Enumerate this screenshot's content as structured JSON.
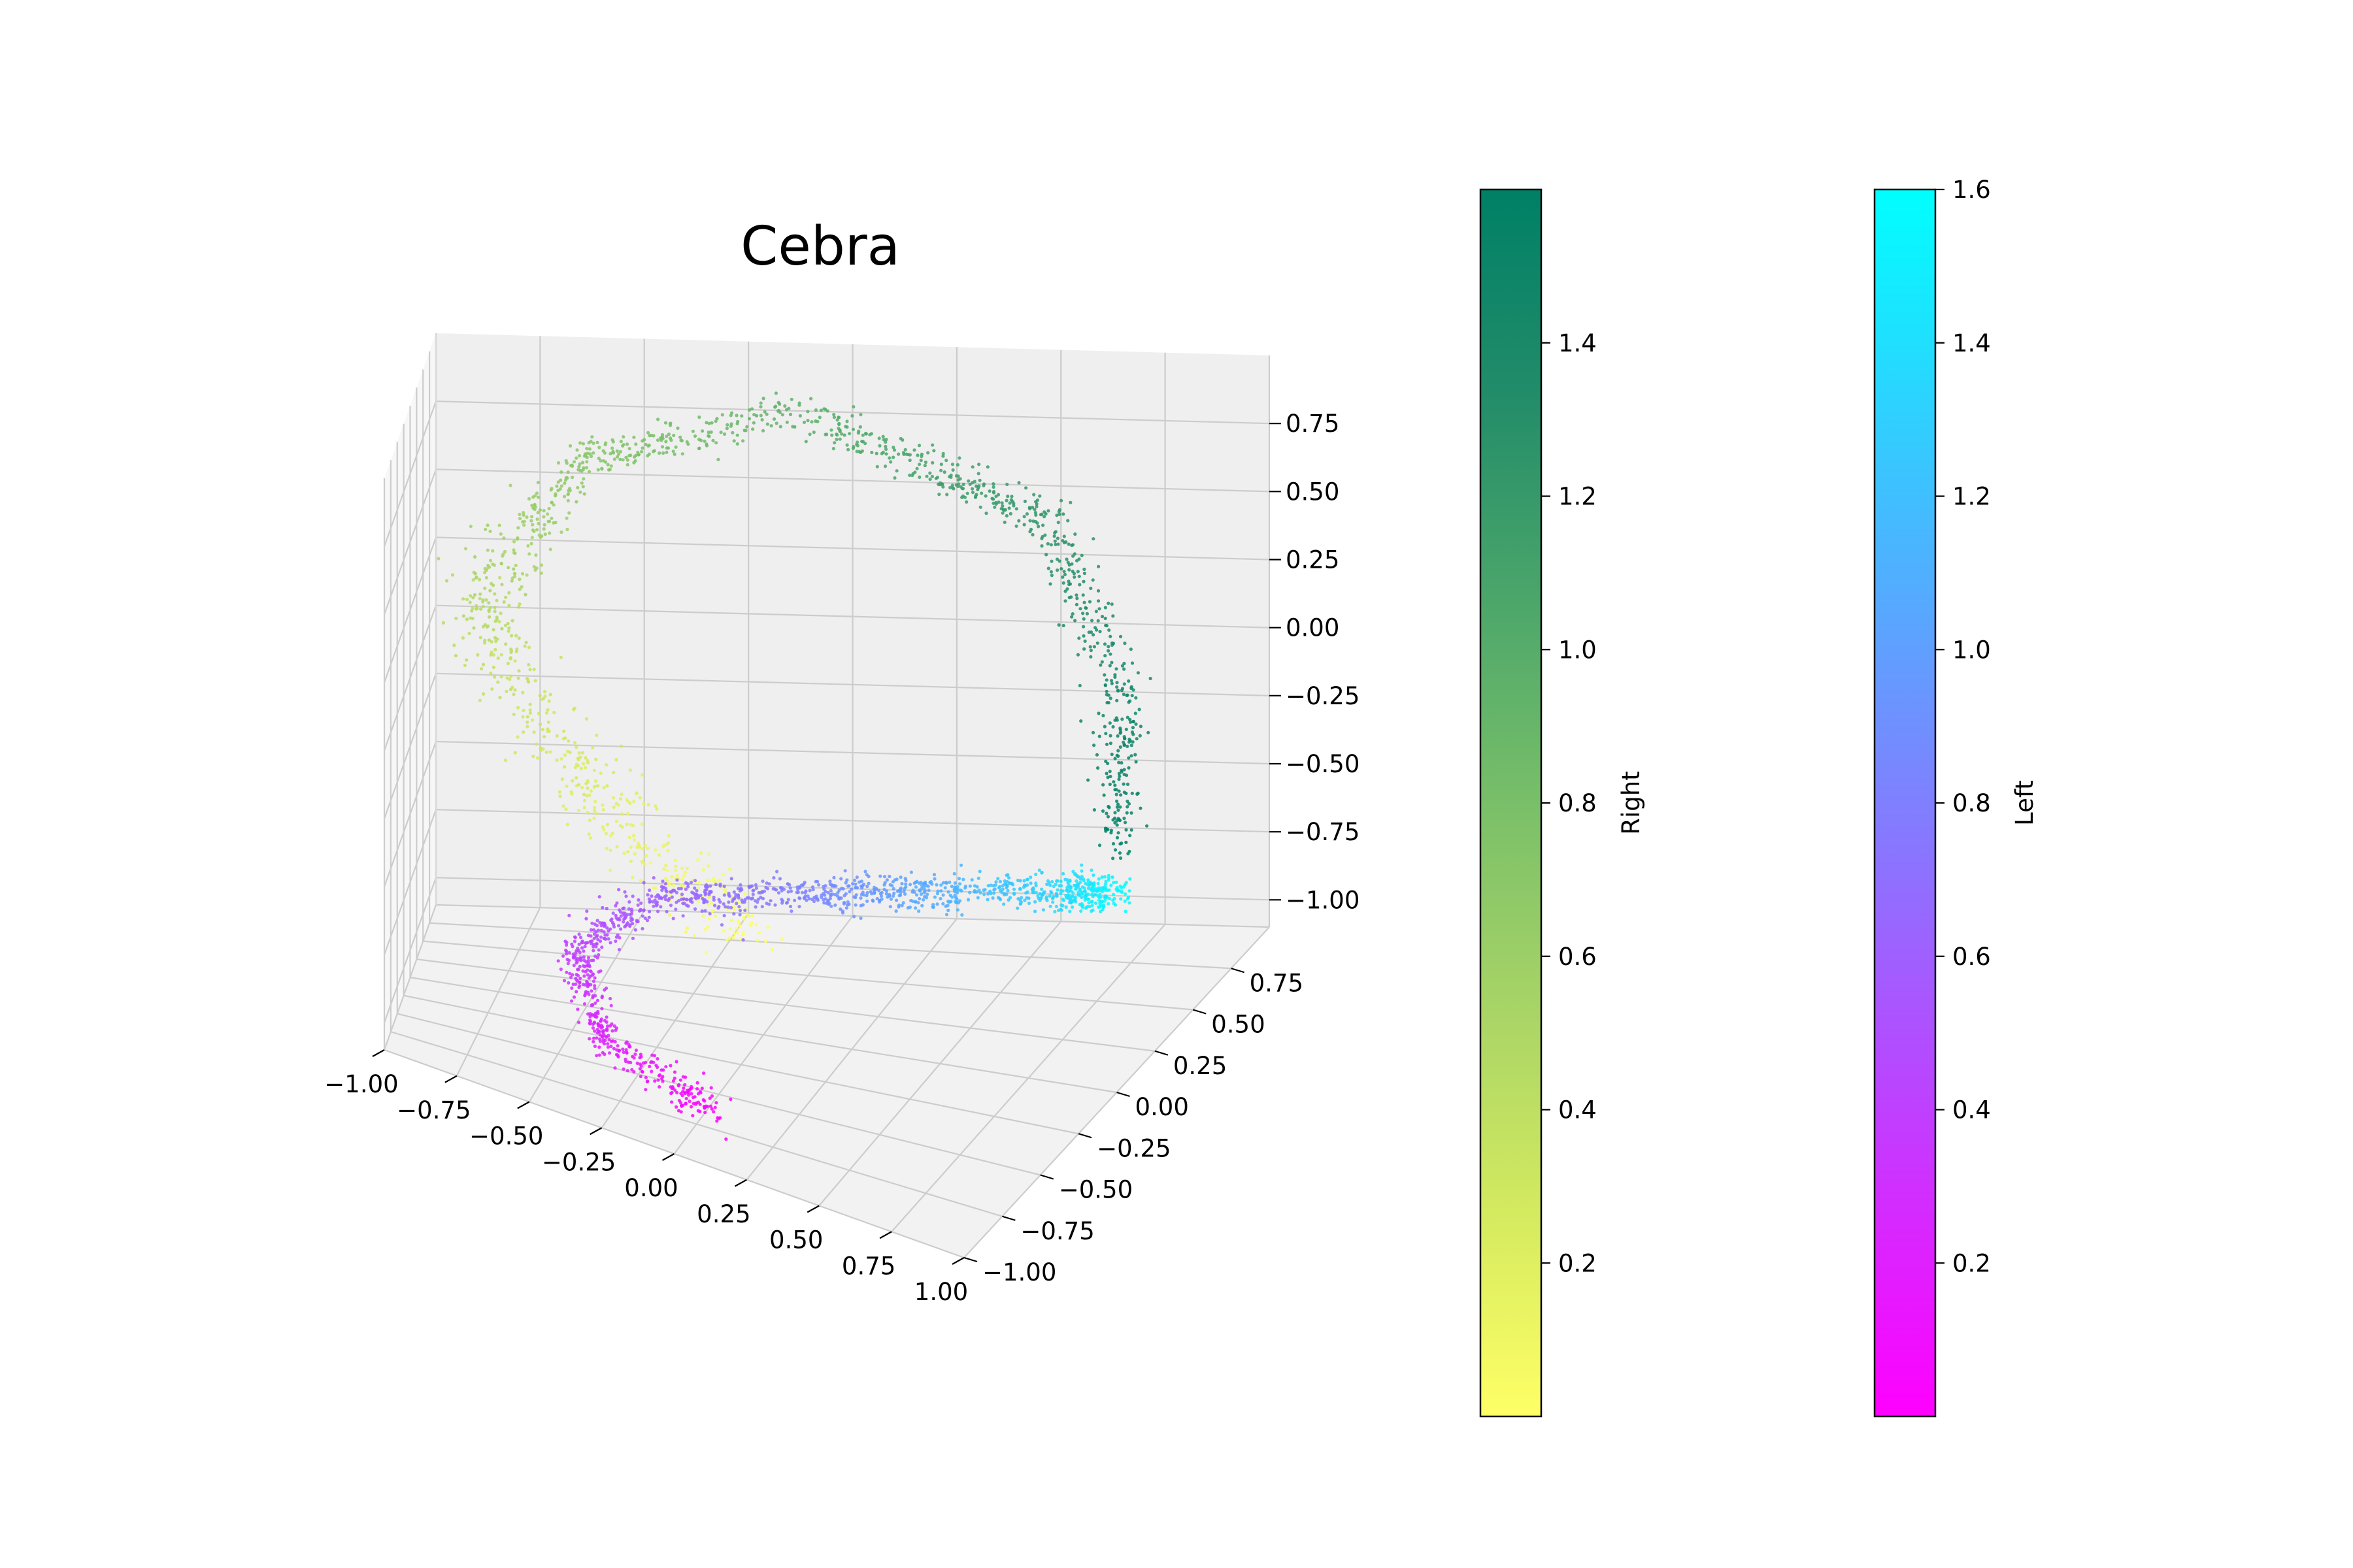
{
  "chart_data": {
    "type": "scatter",
    "projection": "3d",
    "title": "Cebra",
    "axes": {
      "x": {
        "ticks": [
          "−1.00",
          "−0.75",
          "−0.50",
          "−0.25",
          "0.00",
          "0.25",
          "0.50",
          "0.75",
          "1.00"
        ],
        "range": [
          -1.0,
          1.0
        ]
      },
      "y": {
        "ticks": [
          "−1.00",
          "−0.75",
          "−0.50",
          "−0.25",
          "0.00",
          "0.25",
          "0.50",
          "0.75"
        ],
        "range": [
          -1.0,
          1.0
        ]
      },
      "z": {
        "ticks": [
          "−1.00",
          "−0.75",
          "−0.50",
          "−0.25",
          "0.00",
          "0.25",
          "0.50",
          "0.75"
        ],
        "range": [
          -1.0,
          0.9
        ]
      }
    },
    "grid": true,
    "series": [
      {
        "name": "Right",
        "colormap": [
          "#ffff66",
          "#d4ea5f",
          "#a8d466",
          "#79bf69",
          "#4ba66a",
          "#228c69",
          "#008066"
        ],
        "range": [
          0,
          1.6
        ],
        "description_path": [
          {
            "t": 0.0,
            "x": 0.05,
            "y": -0.35,
            "z": -0.55
          },
          {
            "t": 0.2,
            "x": -0.35,
            "y": -0.6,
            "z": -0.1
          },
          {
            "t": 0.45,
            "x": -0.75,
            "y": -0.55,
            "z": 0.45
          },
          {
            "t": 0.7,
            "x": -0.55,
            "y": 0.1,
            "z": 0.85
          },
          {
            "t": 0.95,
            "x": -0.05,
            "y": 0.55,
            "z": 0.95
          },
          {
            "t": 1.25,
            "x": 0.55,
            "y": 0.7,
            "z": 0.55
          },
          {
            "t": 1.45,
            "x": 0.8,
            "y": 0.55,
            "z": 0.0
          },
          {
            "t": 1.6,
            "x": 0.85,
            "y": 0.35,
            "z": -0.45
          }
        ]
      },
      {
        "name": "Left",
        "colormap": [
          "#ff00ff",
          "#cc33ff",
          "#9966ff",
          "#6699ff",
          "#33ccff",
          "#00ffff"
        ],
        "range": [
          0,
          1.6
        ],
        "description_path": [
          {
            "t": 0.0,
            "x": 0.1,
            "y": -0.9,
            "z": -0.95
          },
          {
            "t": 0.2,
            "x": -0.25,
            "y": -0.95,
            "z": -0.8
          },
          {
            "t": 0.4,
            "x": -0.4,
            "y": -0.75,
            "z": -0.6
          },
          {
            "t": 0.6,
            "x": -0.2,
            "y": -0.45,
            "z": -0.45
          },
          {
            "t": 0.8,
            "x": 0.15,
            "y": -0.2,
            "z": -0.45
          },
          {
            "t": 1.1,
            "x": 0.5,
            "y": 0.05,
            "z": -0.5
          },
          {
            "t": 1.35,
            "x": 0.75,
            "y": 0.25,
            "z": -0.55
          },
          {
            "t": 1.6,
            "x": 0.85,
            "y": 0.35,
            "z": -0.6
          }
        ]
      }
    ],
    "colorbars": [
      {
        "label": "Right",
        "ticks": [
          "0.2",
          "0.4",
          "0.6",
          "0.8",
          "1.0",
          "1.2",
          "1.4"
        ],
        "tick_values": [
          0.2,
          0.4,
          0.6,
          0.8,
          1.0,
          1.2,
          1.4
        ],
        "range": [
          0,
          1.6
        ],
        "stops": [
          "#ffff66",
          "#d4ea5f",
          "#a8d466",
          "#79bf69",
          "#4ba66a",
          "#228c69",
          "#008066"
        ]
      },
      {
        "label": "Left",
        "ticks": [
          "0.2",
          "0.4",
          "0.6",
          "0.8",
          "1.0",
          "1.2",
          "1.4",
          "1.6"
        ],
        "tick_values": [
          0.2,
          0.4,
          0.6,
          0.8,
          1.0,
          1.2,
          1.4,
          1.6
        ],
        "range": [
          0,
          1.6
        ],
        "stops": [
          "#ff00ff",
          "#cc33ff",
          "#9966ff",
          "#6699ff",
          "#33ccff",
          "#00ffff"
        ]
      }
    ]
  }
}
